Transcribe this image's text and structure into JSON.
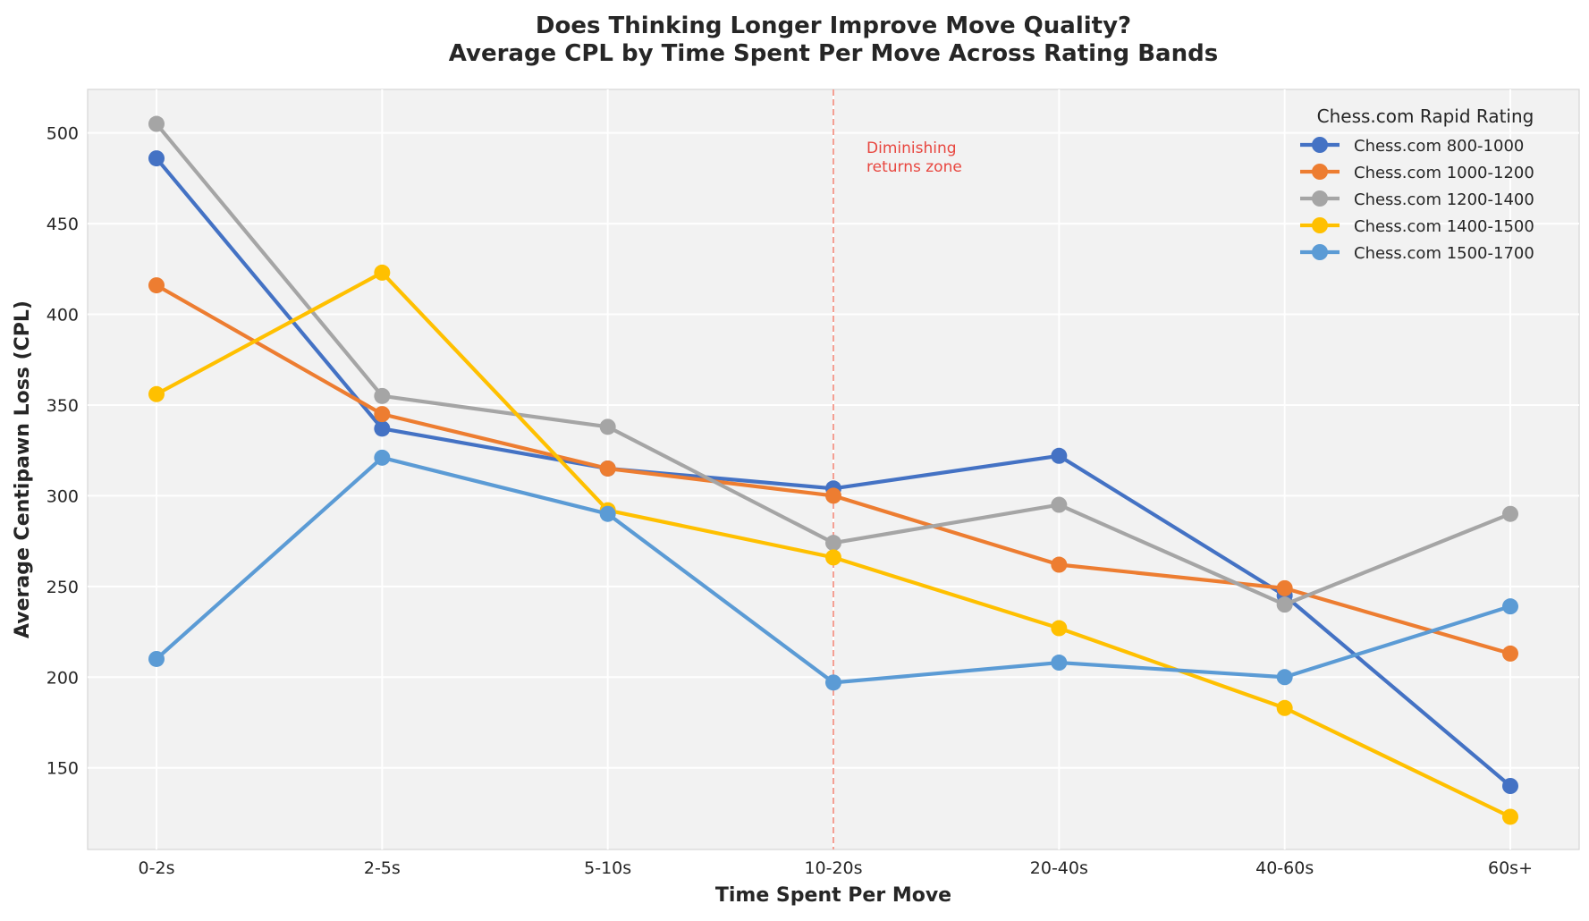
{
  "chart_data": {
    "type": "line",
    "title": "Does Thinking Longer Improve Move Quality?",
    "subtitle": "Average CPL by Time Spent Per Move Across Rating Bands",
    "xlabel": "Time Spent Per Move",
    "ylabel": "Average Centipawn Loss (CPL)",
    "categories": [
      "0-2s",
      "2-5s",
      "5-10s",
      "10-20s",
      "20-40s",
      "40-60s",
      "60s+"
    ],
    "ylim": [
      105,
      524
    ],
    "yticks": [
      150,
      200,
      250,
      300,
      350,
      400,
      450,
      500
    ],
    "grid": true,
    "legend": {
      "title": "Chess.com Rapid Rating",
      "placement": "top-right"
    },
    "series": [
      {
        "name": "Chess.com 800-1000",
        "color": "#4472c4",
        "values": [
          486,
          337,
          315,
          304,
          322,
          245,
          140
        ]
      },
      {
        "name": "Chess.com 1000-1200",
        "color": "#ed7d31",
        "values": [
          416,
          345,
          315,
          300,
          262,
          249,
          213
        ]
      },
      {
        "name": "Chess.com 1200-1400",
        "color": "#a5a5a5",
        "values": [
          505,
          355,
          338,
          274,
          295,
          240,
          290
        ]
      },
      {
        "name": "Chess.com 1400-1500",
        "color": "#ffc000",
        "values": [
          356,
          423,
          292,
          266,
          227,
          183,
          123
        ]
      },
      {
        "name": "Chess.com 1500-1700",
        "color": "#5b9bd5",
        "values": [
          210,
          321,
          290,
          197,
          208,
          200,
          239
        ]
      }
    ],
    "annotations": [
      {
        "text_lines": [
          "Diminishing",
          "returns zone"
        ],
        "x_category": "10-20s",
        "y": 491,
        "color": "#e8463f"
      }
    ],
    "reference_lines": [
      {
        "orientation": "vertical",
        "x_category": "10-20s",
        "style": "dashed",
        "color": "#f08070"
      }
    ]
  }
}
